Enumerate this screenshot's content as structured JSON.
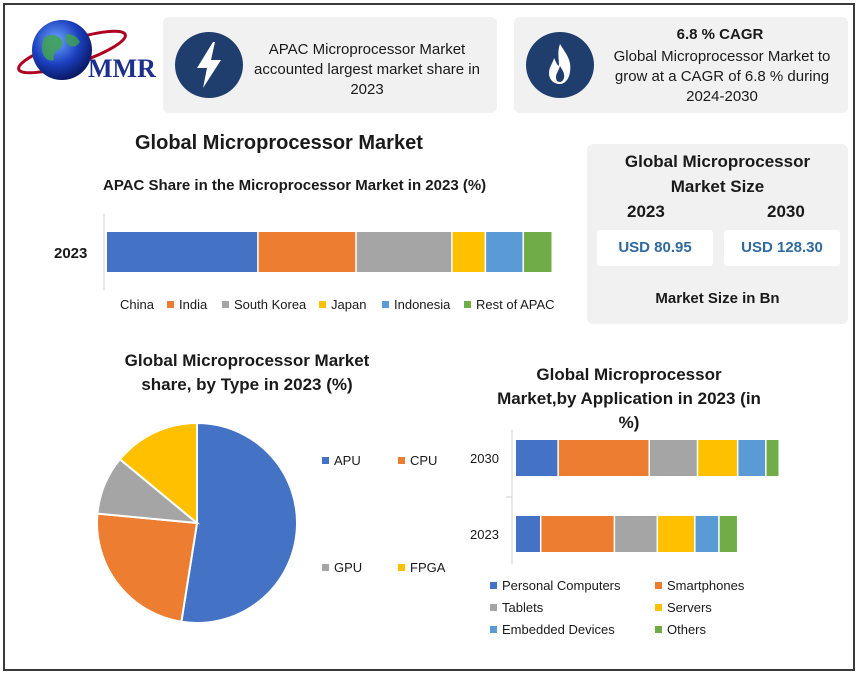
{
  "logo": {
    "text": "MMR"
  },
  "banner_left": {
    "text": "APAC Microprocessor Market accounted largest market share in 2023",
    "icon": "lightning-icon"
  },
  "banner_right": {
    "title": "6.8 % CAGR",
    "text": "Global Microprocessor Market to grow at a CAGR of 6.8 % during 2024-2030",
    "icon": "flame-icon"
  },
  "main_title": "Global Microprocessor Market",
  "market_size": {
    "title": "Global Microprocessor Market Size",
    "years": [
      "2023",
      "2030"
    ],
    "values": [
      "USD 80.95",
      "USD 128.30"
    ],
    "footer": "Market Size in Bn"
  },
  "colors": {
    "blue": "#4472c4",
    "orange": "#ed7d31",
    "gray": "#a5a5a5",
    "yellow": "#ffc000",
    "lightblue": "#5b9bd5",
    "green": "#70ad47"
  },
  "chart_data": [
    {
      "type": "bar",
      "orientation": "horizontal-stacked",
      "title": "APAC Share in the Microprocessor Market in 2023 (%)",
      "categories": [
        "2023"
      ],
      "series": [
        {
          "name": "China",
          "values": [
            34
          ],
          "color": "#4472c4"
        },
        {
          "name": "India",
          "values": [
            22
          ],
          "color": "#ed7d31"
        },
        {
          "name": "South Korea",
          "values": [
            21.5
          ],
          "color": "#a5a5a5"
        },
        {
          "name": "Japan",
          "values": [
            7.5
          ],
          "color": "#ffc000"
        },
        {
          "name": "Indonesia",
          "values": [
            8.5
          ],
          "color": "#5b9bd5"
        },
        {
          "name": "Rest of APAC",
          "values": [
            6.5
          ],
          "color": "#70ad47"
        }
      ],
      "legend": "bottom"
    },
    {
      "type": "pie",
      "title": "Global Microprocessor Market share, by Type in 2023 (%)",
      "slices": [
        {
          "name": "APU",
          "value": 52.5,
          "color": "#4472c4"
        },
        {
          "name": "CPU",
          "value": 24,
          "color": "#ed7d31"
        },
        {
          "name": "GPU",
          "value": 9.5,
          "color": "#a5a5a5"
        },
        {
          "name": "FPGA",
          "value": 14,
          "color": "#ffc000"
        }
      ],
      "legend": "right"
    },
    {
      "type": "bar",
      "orientation": "horizontal-stacked",
      "title": "Global Microprocessor Market,by Application in 2023 (in %)",
      "categories": [
        "2030",
        "2023"
      ],
      "series": [
        {
          "name": "Personal Computers",
          "values": [
            16,
            9.5
          ],
          "color": "#4472c4"
        },
        {
          "name": "Smartphones",
          "values": [
            34,
            27.5
          ],
          "color": "#ed7d31"
        },
        {
          "name": "Tablets",
          "values": [
            18,
            16
          ],
          "color": "#a5a5a5"
        },
        {
          "name": "Servers",
          "values": [
            15,
            14
          ],
          "color": "#ffc000"
        },
        {
          "name": "Embedded Devices",
          "values": [
            10.5,
            9
          ],
          "color": "#5b9bd5"
        },
        {
          "name": "Others",
          "values": [
            5,
            7
          ],
          "color": "#70ad47"
        }
      ],
      "legend": "bottom"
    }
  ]
}
